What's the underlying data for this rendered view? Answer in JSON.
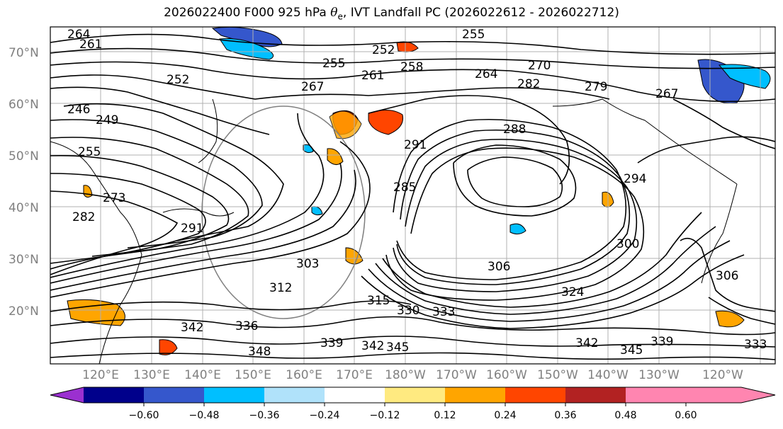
{
  "title": {
    "prefix": "2026022400 F000 925 hPa ",
    "symbol": "θ",
    "subscript": "e",
    "suffix": ", IVT Landfall PC (2026022612 - 2026022712)"
  },
  "map": {
    "lat_labels": [
      "70°N",
      "60°N",
      "50°N",
      "40°N",
      "30°N",
      "20°N"
    ],
    "lon_labels": [
      "120°E",
      "130°E",
      "140°E",
      "150°E",
      "160°E",
      "170°E",
      "180°W",
      "170°W",
      "160°W",
      "150°W",
      "140°W",
      "130°W",
      "120°W"
    ],
    "contour_labels": [
      "264",
      "261",
      "255",
      "252",
      "255",
      "261",
      "258",
      "264",
      "270",
      "267",
      "282",
      "279",
      "267",
      "249",
      "246",
      "252",
      "255",
      "273",
      "282",
      "285",
      "291",
      "294",
      "291",
      "288",
      "300",
      "303",
      "306",
      "312",
      "315",
      "324",
      "330",
      "333",
      "336",
      "342",
      "348",
      "339",
      "342",
      "345",
      "342",
      "345",
      "339",
      "333",
      "306"
    ]
  },
  "colorbar": {
    "ticks": [
      "−0.60",
      "−0.48",
      "−0.36",
      "−0.24",
      "−0.12",
      "0.12",
      "0.24",
      "0.36",
      "0.48",
      "0.60"
    ],
    "colors": [
      "#9b30d0",
      "#00008b",
      "#3557cc",
      "#00bfff",
      "#b0e2fa",
      "#ffffff",
      "#ffea80",
      "#ffa500",
      "#ff4500",
      "#b22222",
      "#ff85b0"
    ]
  },
  "colors": {
    "contour": "#000000",
    "grid": "#b0b0b0",
    "axis_labels": "#808080"
  }
}
